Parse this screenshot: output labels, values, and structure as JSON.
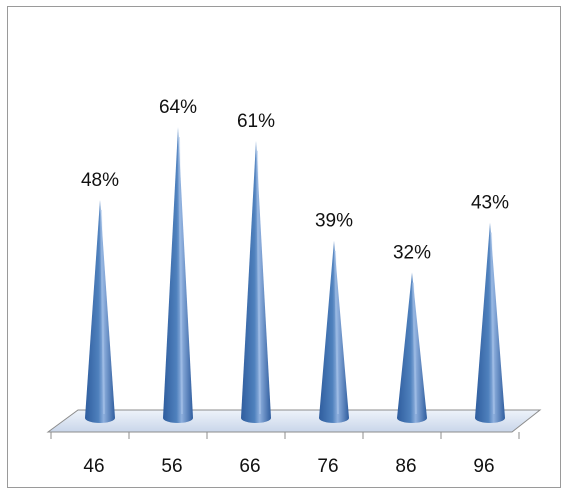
{
  "chart_data": {
    "type": "bar",
    "bar_shape": "cone",
    "categories": [
      "46",
      "56",
      "66",
      "76",
      "86",
      "96"
    ],
    "values": [
      48,
      64,
      61,
      39,
      32,
      43
    ],
    "data_labels": [
      "48%",
      "64%",
      "61%",
      "39%",
      "32%",
      "43%"
    ],
    "title": "",
    "xlabel": "",
    "ylabel": "",
    "ylim": [
      0,
      70
    ],
    "grid": false,
    "legend": "none",
    "colors": {
      "cone_dark": "#2f5d9e",
      "cone_mid": "#4f81bd",
      "cone_light": "#a9c4ea",
      "base_fill": "#d9e3f2",
      "axis": "#8c8c8c",
      "frame": "#9a9a9a"
    }
  }
}
